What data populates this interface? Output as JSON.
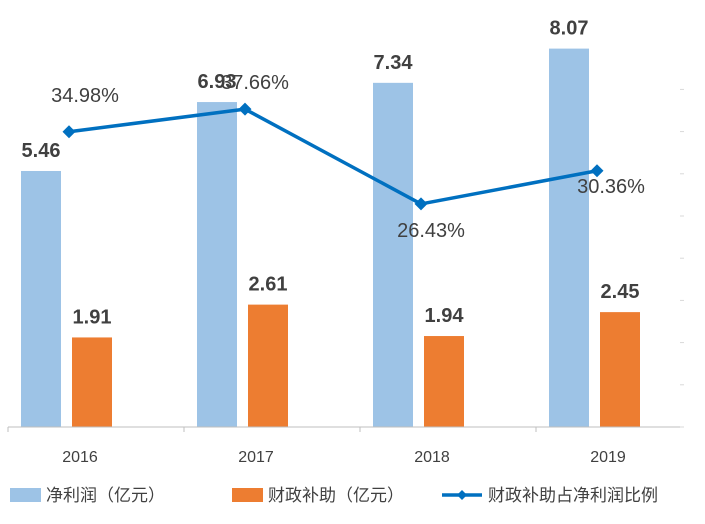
{
  "chart_data": {
    "type": "bar",
    "categories": [
      "2016",
      "2017",
      "2018",
      "2019"
    ],
    "series": [
      {
        "name": "净利润（亿元）",
        "kind": "bar",
        "axis": "left",
        "color": "#9dc3e6",
        "values": [
          5.46,
          6.93,
          7.34,
          8.07
        ],
        "labels": [
          "5.46",
          "6.93",
          "7.34",
          "8.07"
        ]
      },
      {
        "name": "财政补助（亿元）",
        "kind": "bar",
        "axis": "left",
        "color": "#ed7d31",
        "values": [
          1.91,
          2.61,
          1.94,
          2.45
        ],
        "labels": [
          "1.91",
          "2.61",
          "1.94",
          "2.45"
        ]
      },
      {
        "name": "财政补助占净利润比例",
        "kind": "line",
        "axis": "right",
        "color": "#0070c0",
        "values": [
          34.98,
          37.66,
          26.43,
          30.36
        ],
        "labels": [
          "34.98%",
          "37.66%",
          "26.43%",
          "30.36%"
        ]
      }
    ],
    "ylim": [
      0,
      9
    ],
    "y2lim": [
      0,
      50
    ],
    "grid": false,
    "legend": "bottom"
  }
}
